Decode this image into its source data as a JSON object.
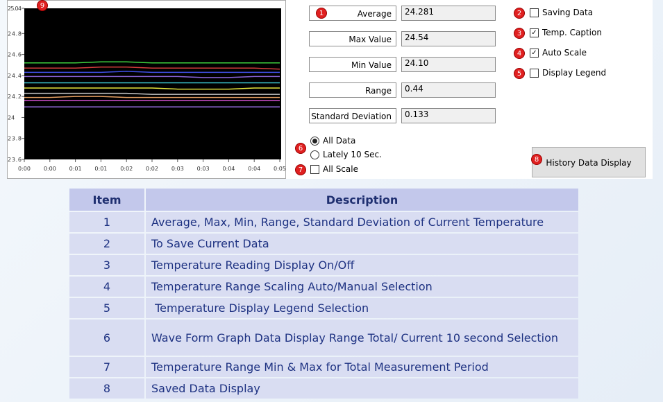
{
  "graph": {
    "marker": "9",
    "ylim": [
      23.6,
      25.04
    ],
    "yticks": [
      25.04,
      24.8,
      24.6,
      24.4,
      24.2,
      24,
      23.8,
      23.6
    ],
    "xticks": [
      "0:00",
      "0:00",
      "0:01",
      "0:01",
      "0:02",
      "0:02",
      "0:03",
      "0:03",
      "0:04",
      "0:04",
      "0:05"
    ],
    "series": [
      {
        "color": "#3fd23f",
        "values": [
          24.52,
          24.52,
          24.52,
          24.53,
          24.53,
          24.52,
          24.52,
          24.52,
          24.52,
          24.52,
          24.52
        ]
      },
      {
        "color": "#d23c3c",
        "values": [
          24.47,
          24.47,
          24.47,
          24.48,
          24.48,
          24.47,
          24.47,
          24.47,
          24.47,
          24.47,
          24.46
        ]
      },
      {
        "color": "#4050e6",
        "values": [
          24.43,
          24.43,
          24.43,
          24.43,
          24.44,
          24.43,
          24.43,
          24.43,
          24.43,
          24.43,
          24.43
        ]
      },
      {
        "color": "#8a64d8",
        "values": [
          24.39,
          24.39,
          24.39,
          24.39,
          24.39,
          24.39,
          24.39,
          24.38,
          24.38,
          24.39,
          24.39
        ]
      },
      {
        "color": "#3cc8d2",
        "values": [
          24.33,
          24.33,
          24.33,
          24.33,
          24.33,
          24.33,
          24.33,
          24.33,
          24.33,
          24.33,
          24.33
        ]
      },
      {
        "color": "#e6e63c",
        "values": [
          24.28,
          24.28,
          24.28,
          24.28,
          24.28,
          24.28,
          24.27,
          24.27,
          24.27,
          24.28,
          24.28
        ]
      },
      {
        "color": "#c8c8c8",
        "values": [
          24.23,
          24.23,
          24.23,
          24.23,
          24.23,
          24.22,
          24.22,
          24.22,
          24.22,
          24.22,
          24.22
        ]
      },
      {
        "color": "#e6a064",
        "values": [
          24.19,
          24.19,
          24.2,
          24.2,
          24.19,
          24.19,
          24.19,
          24.19,
          24.19,
          24.19,
          24.19
        ]
      },
      {
        "color": "#d250d2",
        "values": [
          24.16,
          24.16,
          24.16,
          24.16,
          24.16,
          24.16,
          24.16,
          24.16,
          24.16,
          24.16,
          24.16
        ]
      },
      {
        "color": "#9a6ee6",
        "values": [
          24.1,
          24.1,
          24.1,
          24.1,
          24.1,
          24.1,
          24.1,
          24.1,
          24.1,
          24.1,
          24.1
        ]
      }
    ]
  },
  "stats": [
    {
      "label": "Average",
      "value": "24.281",
      "marker": "1"
    },
    {
      "label": "Max Value",
      "value": "24.54"
    },
    {
      "label": "Min Value",
      "value": "24.10"
    },
    {
      "label": "Range",
      "value": "0.44"
    },
    {
      "label": "Standard Deviation",
      "value": "0.133"
    }
  ],
  "options": [
    {
      "label": "Saving Data",
      "checked": false,
      "marker": "2"
    },
    {
      "label": "Temp. Caption",
      "checked": true,
      "marker": "3"
    },
    {
      "label": "Auto Scale",
      "checked": true,
      "marker": "4"
    },
    {
      "label": "Display Legend",
      "checked": false,
      "marker": "5"
    }
  ],
  "range_mode": {
    "marker": "6",
    "choices": [
      {
        "label": "All Data",
        "selected": true
      },
      {
        "label": "Lately 10 Sec.",
        "selected": false
      }
    ]
  },
  "all_scale": {
    "label": "All Scale",
    "checked": false,
    "marker": "7"
  },
  "history_button": {
    "label": "History Data Display",
    "marker": "8"
  },
  "table": {
    "header": [
      "Item",
      "Description"
    ],
    "rows": [
      [
        "1",
        "Average, Max, Min, Range, Standard Deviation of Current Temperature"
      ],
      [
        "2",
        "To Save Current Data"
      ],
      [
        "3",
        "Temperature Reading Display On/Off"
      ],
      [
        "4",
        "Temperature Range Scaling Auto/Manual Selection"
      ],
      [
        "5",
        " Temperature Display Legend Selection"
      ],
      [
        "6",
        "Wave Form Graph Data Display Range Total/ Current 10 second Selection"
      ],
      [
        "7",
        "Temperature Range Min & Max for Total Measurement Period"
      ],
      [
        "8",
        "Saved Data Display"
      ]
    ]
  }
}
